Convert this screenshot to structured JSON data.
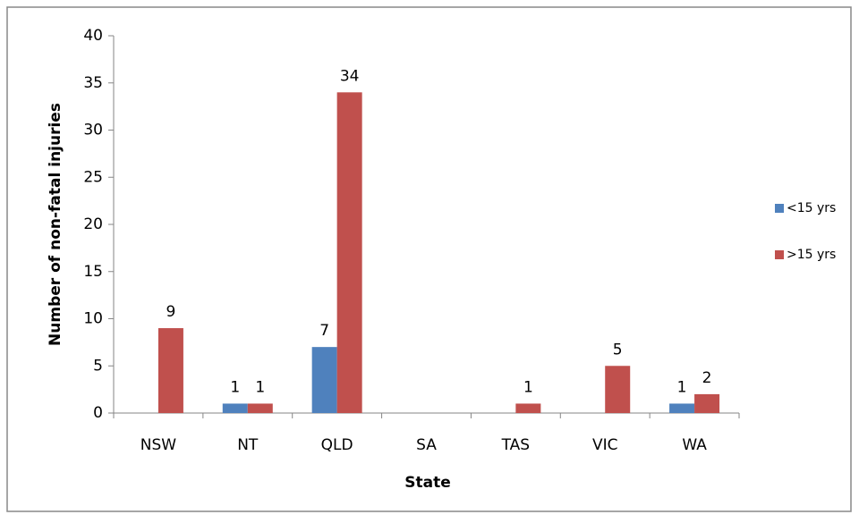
{
  "chart_data": {
    "type": "bar",
    "x_label": "State",
    "y_label": "Number of non-fatal injuries",
    "categories": [
      "NSW",
      "NT",
      "QLD",
      "SA",
      "TAS",
      "VIC",
      "WA"
    ],
    "series": [
      {
        "name": "<15 yrs",
        "color": "#4f81bd",
        "values": [
          null,
          1,
          7,
          null,
          null,
          null,
          1
        ]
      },
      {
        "name": ">15 yrs",
        "color": "#c0504d",
        "values": [
          9,
          1,
          34,
          null,
          1,
          5,
          2
        ]
      }
    ],
    "ylim": [
      0,
      40
    ],
    "yticks": [
      0,
      5,
      10,
      15,
      20,
      25,
      30,
      35,
      40
    ],
    "legend": "right"
  }
}
